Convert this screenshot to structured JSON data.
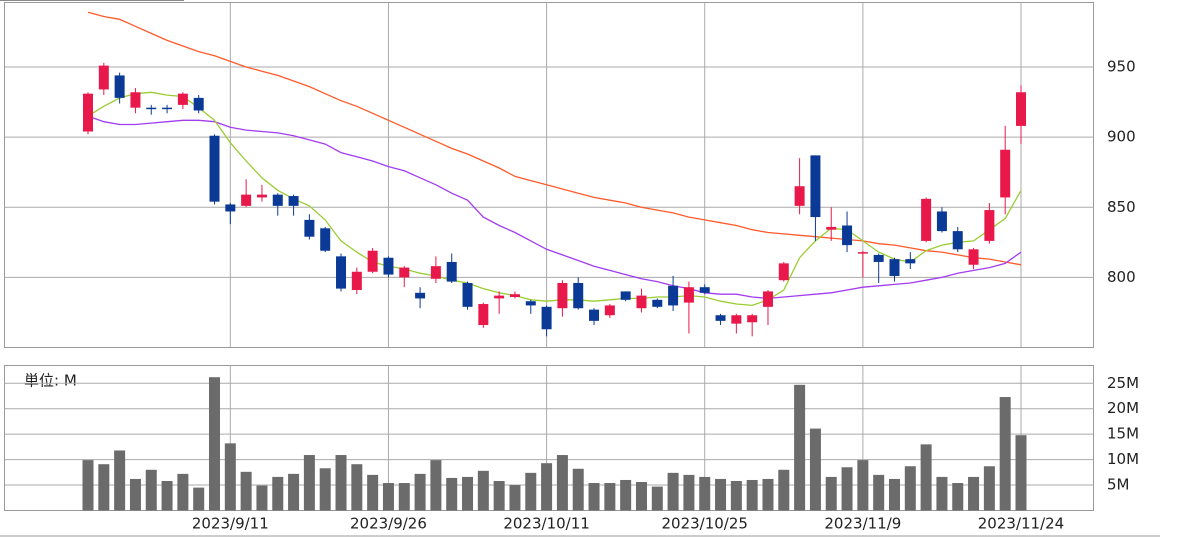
{
  "chart_data": [
    {
      "type": "candlestick",
      "open": [
        904,
        934,
        944,
        921,
        921,
        921,
        923,
        928,
        901,
        852,
        851,
        857,
        859,
        858,
        841,
        835,
        815,
        791,
        804,
        814,
        800,
        789,
        799,
        811,
        796,
        766,
        785,
        786,
        783,
        779,
        778,
        796,
        777,
        773,
        790,
        778,
        784,
        794,
        782,
        793,
        773,
        767,
        768,
        779,
        798,
        851,
        887,
        834,
        837,
        817,
        816,
        813,
        813,
        826,
        847,
        833,
        809,
        826,
        857,
        908
      ],
      "high": [
        932,
        953,
        946,
        935,
        923,
        923,
        932,
        930,
        902,
        853,
        870,
        866,
        860,
        859,
        845,
        836,
        817,
        807,
        821,
        815,
        808,
        793,
        815,
        817,
        797,
        782,
        790,
        790,
        784,
        780,
        798,
        800,
        778,
        781,
        790,
        792,
        785,
        801,
        797,
        795,
        774,
        774,
        774,
        791,
        811,
        885,
        887,
        850,
        847,
        819,
        817,
        814,
        818,
        857,
        850,
        836,
        821,
        853,
        908,
        937
      ],
      "low": [
        902,
        930,
        924,
        917,
        916,
        917,
        920,
        917,
        852,
        838,
        850,
        854,
        844,
        844,
        827,
        818,
        790,
        788,
        803,
        800,
        793,
        778,
        796,
        796,
        777,
        764,
        774,
        785,
        774,
        758,
        772,
        777,
        766,
        771,
        783,
        775,
        778,
        776,
        760,
        788,
        766,
        760,
        758,
        766,
        797,
        845,
        826,
        826,
        818,
        800,
        796,
        797,
        806,
        825,
        832,
        818,
        806,
        824,
        845,
        895
      ],
      "close": [
        931,
        951,
        928,
        932,
        920,
        920,
        931,
        919,
        854,
        847,
        859,
        859,
        851,
        851,
        829,
        819,
        792,
        804,
        819,
        802,
        807,
        785,
        808,
        797,
        779,
        781,
        787,
        788,
        780,
        763,
        796,
        778,
        769,
        780,
        784,
        787,
        779,
        780,
        793,
        789,
        769,
        773,
        773,
        790,
        810,
        865,
        843,
        836,
        823,
        818,
        811,
        801,
        810,
        856,
        833,
        820,
        820,
        848,
        891,
        932
      ],
      "up_color": "#e8194a",
      "down_color": "#0b3a96",
      "lines": [
        {
          "color": "#ff5a2a",
          "values": [
            989,
            986,
            984,
            979,
            974,
            969,
            965,
            961,
            958,
            954,
            950,
            947,
            944,
            940,
            936,
            931,
            926,
            922,
            917,
            912,
            907,
            902,
            897,
            892,
            888,
            883,
            878,
            872,
            869,
            866,
            863,
            860,
            857,
            855,
            853,
            850,
            848,
            846,
            843,
            841,
            839,
            837,
            834,
            832,
            831,
            830,
            829,
            828,
            827,
            826,
            824,
            823,
            821,
            819,
            818,
            816,
            814,
            813,
            811,
            809
          ]
        },
        {
          "color": "#a23cf0",
          "values": [
            915,
            911,
            909,
            909,
            910,
            911,
            912,
            912,
            911,
            907,
            905,
            904,
            903,
            901,
            898,
            895,
            889,
            886,
            883,
            879,
            876,
            871,
            866,
            860,
            855,
            843,
            837,
            832,
            826,
            820,
            816,
            812,
            808,
            805,
            802,
            799,
            797,
            794,
            792,
            789,
            788,
            788,
            786,
            785,
            786,
            787,
            788,
            789,
            791,
            793,
            794,
            795,
            796,
            798,
            800,
            803,
            805,
            807,
            810,
            818
          ]
        },
        {
          "color": "#9acd32",
          "values": [
            915,
            922,
            928,
            931,
            932,
            930,
            929,
            921,
            912,
            896,
            883,
            871,
            862,
            856,
            851,
            841,
            826,
            818,
            811,
            808,
            806,
            803,
            801,
            798,
            796,
            792,
            789,
            787,
            784,
            783,
            784,
            784,
            783,
            784,
            785,
            785,
            786,
            786,
            787,
            786,
            783,
            781,
            780,
            784,
            791,
            814,
            826,
            835,
            834,
            826,
            818,
            813,
            811,
            819,
            823,
            825,
            826,
            834,
            842,
            862
          ]
        }
      ],
      "ylim": [
        750,
        996
      ],
      "yticks": [
        800,
        850,
        900,
        950
      ],
      "grid": true
    },
    {
      "type": "bar",
      "unit_label": "単位: M",
      "categories": [
        null,
        null,
        null,
        null,
        null,
        null,
        null,
        null,
        null,
        "2023/9/11",
        null,
        null,
        null,
        null,
        null,
        null,
        null,
        null,
        null,
        "2023/9/26",
        null,
        null,
        null,
        null,
        null,
        null,
        null,
        null,
        null,
        "2023/10/11",
        null,
        null,
        null,
        null,
        null,
        null,
        null,
        null,
        null,
        "2023/10/25",
        null,
        null,
        null,
        null,
        null,
        null,
        null,
        null,
        null,
        "2023/11/9",
        null,
        null,
        null,
        null,
        null,
        null,
        null,
        null,
        null,
        "2023/11/24"
      ],
      "values": [
        9.9,
        9.1,
        11.8,
        6.2,
        8.0,
        5.8,
        7.2,
        4.5,
        26.2,
        13.2,
        7.6,
        4.9,
        6.6,
        7.2,
        10.9,
        8.3,
        10.9,
        9.1,
        7.0,
        5.4,
        5.4,
        7.2,
        9.9,
        6.4,
        6.6,
        7.8,
        5.8,
        5.0,
        7.4,
        9.3,
        10.9,
        8.2,
        5.4,
        5.4,
        6.0,
        5.6,
        4.7,
        7.4,
        7.0,
        6.6,
        6.2,
        5.8,
        6.0,
        6.2,
        8.0,
        24.7,
        16.1,
        6.6,
        8.5,
        9.9,
        7.0,
        6.2,
        8.7,
        13.0,
        6.6,
        5.4,
        6.6,
        8.7,
        22.3,
        14.8
      ],
      "color": "#6b6b6b",
      "ylim": [
        0,
        28.5
      ],
      "yticks": [
        {
          "value": 5,
          "label": "5M"
        },
        {
          "value": 10,
          "label": "10M"
        },
        {
          "value": 15,
          "label": "15M"
        },
        {
          "value": 20,
          "label": "20M"
        },
        {
          "value": 25,
          "label": "25M"
        }
      ],
      "grid": true
    }
  ]
}
